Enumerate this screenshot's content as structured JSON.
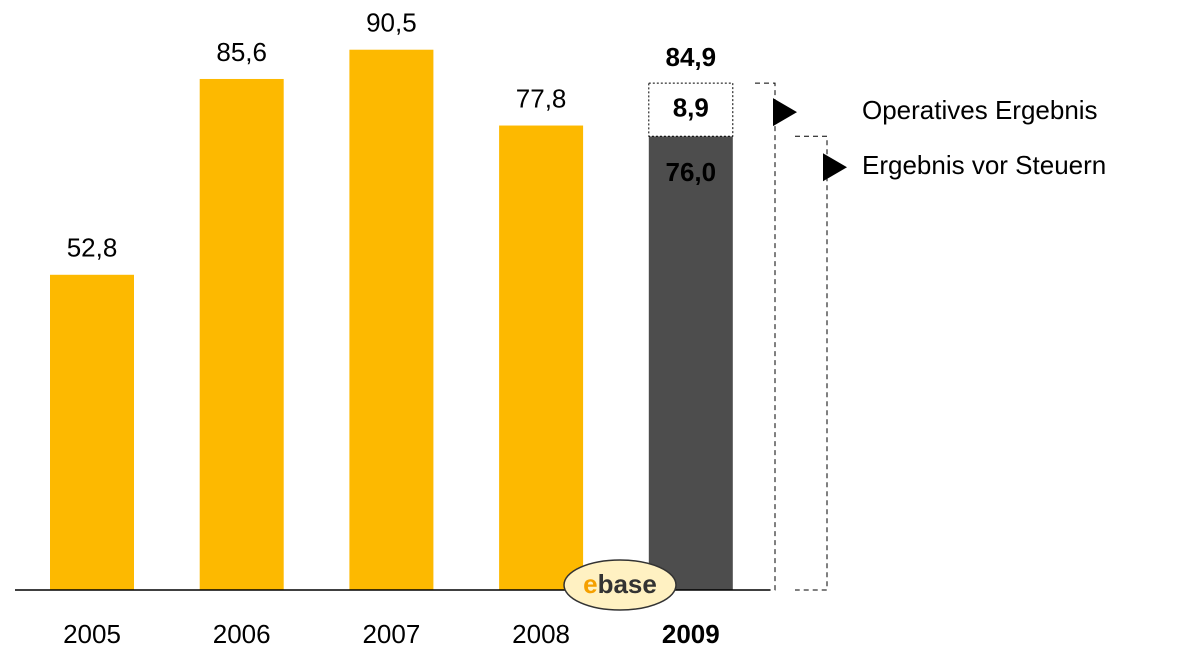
{
  "chart_data": {
    "type": "bar",
    "categories": [
      "2005",
      "2006",
      "2007",
      "2008",
      "2009"
    ],
    "highlight_index": 4,
    "series": [
      {
        "values": [
          52.8,
          85.6,
          90.5,
          77.8,
          76.0
        ],
        "value_labels": [
          "52,8",
          "85,6",
          "90,5",
          "77,8",
          "76,0"
        ],
        "colors": [
          "#fdb900",
          "#fdb900",
          "#fdb900",
          "#fdb900",
          "#4d4d4d"
        ]
      },
      {
        "values": [
          null,
          null,
          null,
          null,
          8.9
        ],
        "value_labels": [
          null,
          null,
          null,
          null,
          "8,9"
        ],
        "color": "#ffffff"
      }
    ],
    "total": {
      "value": 84.9,
      "label": "84,9"
    },
    "ylim": [
      0,
      100
    ],
    "annotations": [
      {
        "text": "Operatives Ergebnis",
        "value": 84.9
      },
      {
        "text": "Ergebnis vor Steuern",
        "value": 76.0
      }
    ],
    "logo": {
      "accent": "e",
      "rest": "base"
    }
  }
}
